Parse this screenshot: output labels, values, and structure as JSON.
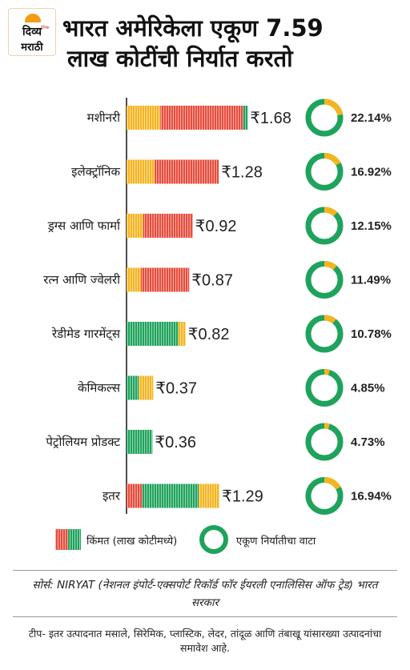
{
  "logo": {
    "line1": "दिव्य",
    "line2": "मराठी",
    "tag": "दैनिक"
  },
  "header": {
    "title_line1": "भारत अमेरिकेला एकूण 7.59",
    "title_line2": "लाख कोटींची निर्यात करतो"
  },
  "chart_data": {
    "type": "bar",
    "orientation": "horizontal",
    "value_unit": "₹ लाख कोटी",
    "categories": [
      "मशीनरी",
      "इलेक्ट्रॉनिक",
      "ड्रग्स आणि फार्मा",
      "रत्न आणि ज्वेलरी",
      "रेडीमेड गारमेंट्स",
      "केमिकल्स",
      "पेट्रोलियम प्रोडक्ट",
      "इतर"
    ],
    "value_labels": [
      "₹1.68",
      "₹1.28",
      "₹0.92",
      "₹0.87",
      "₹0.82",
      "₹0.37",
      "₹0.36",
      "₹1.29"
    ],
    "values": [
      1.68,
      1.28,
      0.92,
      0.87,
      0.82,
      0.37,
      0.36,
      1.29
    ],
    "share_labels": [
      "22.14%",
      "16.92%",
      "12.15%",
      "11.49%",
      "10.78%",
      "4.85%",
      "4.73%",
      "16.94%"
    ],
    "share_percent": [
      22.14,
      16.92,
      12.15,
      11.49,
      10.78,
      4.85,
      4.73,
      16.94
    ],
    "bar_segments": [
      [
        {
          "color": "#f5b41e",
          "value": 0.47
        },
        {
          "color": "#e74c3c",
          "value": 1.15
        },
        {
          "color": "#1ea35c",
          "value": 0.06
        }
      ],
      [
        {
          "color": "#f5b41e",
          "value": 0.39
        },
        {
          "color": "#e74c3c",
          "value": 0.89
        }
      ],
      [
        {
          "color": "#f5b41e",
          "value": 0.23
        },
        {
          "color": "#e74c3c",
          "value": 0.69
        }
      ],
      [
        {
          "color": "#f5b41e",
          "value": 0.2
        },
        {
          "color": "#e74c3c",
          "value": 0.67
        }
      ],
      [
        {
          "color": "#1ea35c",
          "value": 0.72
        },
        {
          "color": "#f5b41e",
          "value": 0.1
        }
      ],
      [
        {
          "color": "#1ea35c",
          "value": 0.17
        },
        {
          "color": "#f5b41e",
          "value": 0.2
        }
      ],
      [
        {
          "color": "#1ea35c",
          "value": 0.36
        }
      ],
      [
        {
          "color": "#e74c3c",
          "value": 0.22
        },
        {
          "color": "#1ea35c",
          "value": 0.78
        },
        {
          "color": "#f5b41e",
          "value": 0.29
        }
      ]
    ],
    "colors": {
      "red": "#e74c3c",
      "yellow": "#f5b41e",
      "green": "#1ea35c",
      "ring_highlight": "#f5b41e"
    }
  },
  "legend": {
    "bar_label": "किंमत (लाख कोटीमध्ये)",
    "ring_label": "एकूण निर्यातीचा वाटा"
  },
  "source": "सोर्स: NIRYAT (नेशनल इंपोर्ट-एक्सपोर्ट रिकॉर्ड फॉर ईयरली एनालिसिस ऑफ ट्रेड) भारत सरकार",
  "note": "टीप- इतर उत्पादनात मसाले, सिरेमिक, प्लास्टिक, लेदर, तांदूळ आणि तंबाखू यांसारख्या उत्पादनांचा समावेश आहे."
}
